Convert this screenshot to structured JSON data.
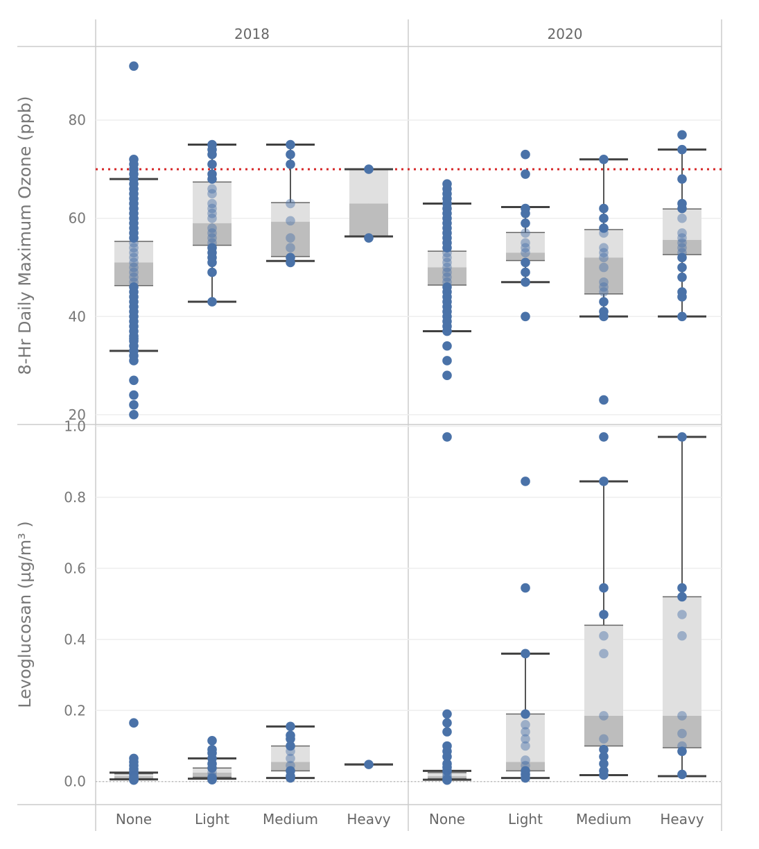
{
  "chart_data": {
    "type": "box",
    "title": "",
    "facets": [
      "2018",
      "2020"
    ],
    "categories": [
      "None",
      "Light",
      "Medium",
      "Heavy"
    ],
    "colors": {
      "point": "#4A72A8",
      "box_upper": "#E0E0E0",
      "box_lower": "#BDBDBD",
      "whisker": "#404040",
      "reference": "#D62728",
      "grid": "#EEEEEE",
      "frame": "#CCCCCC"
    },
    "panels": [
      {
        "id": "ozone",
        "ylabel": "8-Hr Daily Maximum Ozone (ppb)",
        "ylim": [
          18,
          95
        ],
        "yticks": [
          20,
          40,
          60,
          80
        ],
        "tick_labels": [
          "20",
          "40",
          "60",
          "80"
        ],
        "reference_line": 70,
        "groups": [
          {
            "year": "2018",
            "category": "None",
            "whisker_low": 33,
            "q1": 46.3,
            "median": 51,
            "q3": 55.3,
            "whisker_high": 68,
            "points": [
              91,
              72,
              71,
              70,
              69,
              68,
              67,
              66,
              65,
              64,
              63,
              62,
              61,
              60,
              59,
              58,
              57,
              56,
              55,
              54,
              53,
              52,
              51,
              50,
              49,
              48,
              47,
              46,
              45,
              44,
              43,
              42,
              41,
              40,
              39,
              38,
              37,
              36,
              35.5,
              35,
              34,
              33,
              32,
              31,
              27,
              24,
              22,
              20
            ]
          },
          {
            "year": "2018",
            "category": "Light",
            "whisker_low": 43,
            "q1": 54.5,
            "median": 59,
            "q3": 67.4,
            "whisker_high": 75,
            "points": [
              75,
              74,
              73,
              71,
              69,
              68,
              66,
              65,
              63,
              62,
              61,
              60,
              58,
              57,
              56,
              55,
              54,
              53,
              52,
              51,
              49,
              43
            ]
          },
          {
            "year": "2018",
            "category": "Medium",
            "whisker_low": 51.3,
            "q1": 52.2,
            "median": 59.3,
            "q3": 63.2,
            "whisker_high": 75,
            "points": [
              75,
              73,
              71,
              63,
              59.5,
              56,
              54,
              52,
              51
            ]
          },
          {
            "year": "2018",
            "category": "Heavy",
            "whisker_low": 56.3,
            "q1": 56.3,
            "median": 63,
            "q3": 70,
            "whisker_high": 70,
            "points": [
              70,
              56
            ]
          },
          {
            "year": "2020",
            "category": "None",
            "whisker_low": 37,
            "q1": 46.4,
            "median": 50,
            "q3": 53.3,
            "whisker_high": 63,
            "points": [
              67,
              66,
              65,
              64,
              63,
              62,
              61,
              60,
              59,
              58,
              57,
              56,
              55,
              54,
              53,
              52,
              51,
              50,
              49,
              48,
              47,
              46,
              45,
              44,
              43,
              42,
              41,
              40,
              39,
              38,
              37,
              34,
              31,
              28
            ]
          },
          {
            "year": "2020",
            "category": "Light",
            "whisker_low": 47,
            "q1": 51.4,
            "median": 53,
            "q3": 57.1,
            "whisker_high": 62.3,
            "points": [
              73,
              69,
              62,
              61,
              59,
              57,
              55,
              54,
              53,
              51,
              49,
              47,
              40
            ]
          },
          {
            "year": "2020",
            "category": "Medium",
            "whisker_low": 40,
            "q1": 44.6,
            "median": 52,
            "q3": 57.7,
            "whisker_high": 72,
            "points": [
              72,
              62,
              60,
              58,
              57,
              54,
              53,
              52,
              50,
              47,
              46,
              45,
              43,
              41,
              40,
              23
            ]
          },
          {
            "year": "2020",
            "category": "Heavy",
            "whisker_low": 40,
            "q1": 52.6,
            "median": 55.6,
            "q3": 61.9,
            "whisker_high": 74,
            "points": [
              77,
              74,
              68,
              63,
              62,
              60,
              57,
              56,
              55,
              54,
              53,
              52,
              50,
              48,
              45,
              44,
              40
            ]
          }
        ]
      },
      {
        "id": "levoglucosan",
        "ylabel": "Levoglucosan (µg/m³ )",
        "ylim": [
          -0.065,
          1.005
        ],
        "yticks": [
          0.0,
          0.2,
          0.4,
          0.6,
          0.8,
          1.0
        ],
        "tick_labels": [
          "0.0",
          "0.2",
          "0.4",
          "0.6",
          "0.8",
          "1.0"
        ],
        "zero_line": 0,
        "groups": [
          {
            "year": "2018",
            "category": "None",
            "whisker_low": 0.006,
            "q1": 0.008,
            "median": 0.015,
            "q3": 0.022,
            "whisker_high": 0.025,
            "points": [
              0.165,
              0.065,
              0.055,
              0.045,
              0.035,
              0.028,
              0.022,
              0.018,
              0.015,
              0.012,
              0.01,
              0.008,
              0.006,
              0.005,
              0.004
            ]
          },
          {
            "year": "2018",
            "category": "Light",
            "whisker_low": 0.008,
            "q1": 0.012,
            "median": 0.025,
            "q3": 0.038,
            "whisker_high": 0.065,
            "points": [
              0.115,
              0.09,
              0.08,
              0.065,
              0.05,
              0.038,
              0.025,
              0.015,
              0.01,
              0.005
            ]
          },
          {
            "year": "2018",
            "category": "Medium",
            "whisker_low": 0.01,
            "q1": 0.03,
            "median": 0.055,
            "q3": 0.1,
            "whisker_high": 0.155,
            "points": [
              0.155,
              0.13,
              0.12,
              0.1,
              0.085,
              0.065,
              0.045,
              0.03,
              0.015,
              0.01
            ]
          },
          {
            "year": "2018",
            "category": "Heavy",
            "whisker_low": 0.048,
            "q1": 0.048,
            "median": 0.048,
            "q3": 0.048,
            "whisker_high": 0.048,
            "points": [
              0.048
            ]
          },
          {
            "year": "2020",
            "category": "None",
            "whisker_low": 0.005,
            "q1": 0.008,
            "median": 0.015,
            "q3": 0.025,
            "whisker_high": 0.03,
            "points": [
              0.97,
              0.19,
              0.165,
              0.14,
              0.1,
              0.085,
              0.07,
              0.05,
              0.04,
              0.03,
              0.022,
              0.015,
              0.01,
              0.006,
              0.004
            ]
          },
          {
            "year": "2020",
            "category": "Light",
            "whisker_low": 0.01,
            "q1": 0.03,
            "median": 0.055,
            "q3": 0.19,
            "whisker_high": 0.36,
            "points": [
              0.845,
              0.545,
              0.36,
              0.19,
              0.16,
              0.14,
              0.12,
              0.1,
              0.06,
              0.045,
              0.03,
              0.02,
              0.01
            ]
          },
          {
            "year": "2020",
            "category": "Medium",
            "whisker_low": 0.018,
            "q1": 0.1,
            "median": 0.185,
            "q3": 0.44,
            "whisker_high": 0.845,
            "points": [
              0.97,
              0.845,
              0.545,
              0.47,
              0.41,
              0.36,
              0.185,
              0.12,
              0.09,
              0.07,
              0.05,
              0.03,
              0.018
            ]
          },
          {
            "year": "2020",
            "category": "Heavy",
            "whisker_low": 0.015,
            "q1": 0.095,
            "median": 0.185,
            "q3": 0.52,
            "whisker_high": 0.97,
            "points": [
              0.97,
              0.545,
              0.52,
              0.47,
              0.41,
              0.185,
              0.135,
              0.1,
              0.085,
              0.02
            ]
          }
        ]
      }
    ]
  }
}
